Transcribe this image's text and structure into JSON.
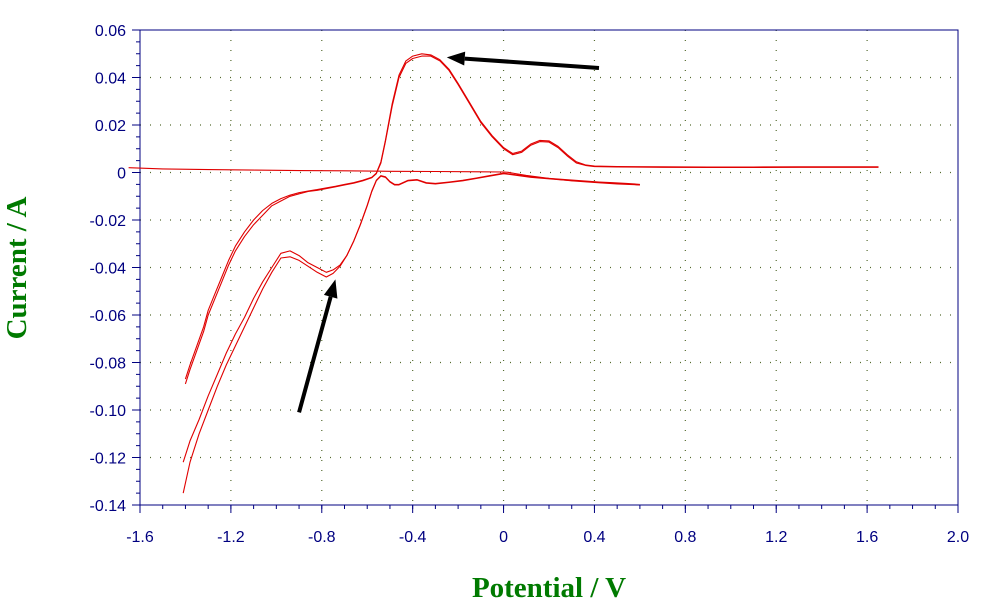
{
  "chart_data": {
    "type": "line",
    "xlabel": "Potential / V",
    "ylabel": "Current / A",
    "xlim": [
      -1.6,
      2.0
    ],
    "ylim": [
      -0.14,
      0.06
    ],
    "xticks": [
      "-1.6",
      "-1.2",
      "-0.8",
      "-0.4",
      "0",
      "0.4",
      "0.8",
      "1.2",
      "1.6",
      "2.0"
    ],
    "yticks": [
      "0.06",
      "0.04",
      "0.02",
      "0",
      "-0.02",
      "-0.04",
      "-0.06",
      "-0.08",
      "-0.10",
      "-0.12",
      "-0.14"
    ],
    "grid": true,
    "colors": {
      "axis": "#000080",
      "curve": "#e00000",
      "grid": "#556b2f",
      "arrow": "#000000",
      "title": "#007a00"
    },
    "series": [
      {
        "x": [
          -1.4,
          -1.38,
          -1.35,
          -1.32,
          -1.3,
          -1.27,
          -1.24,
          -1.21,
          -1.18,
          -1.14,
          -1.1,
          -1.06,
          -1.02,
          -0.98,
          -0.94,
          -0.9,
          -0.86,
          -0.82,
          -0.78,
          -0.74,
          -0.7,
          -0.66,
          -0.62,
          -0.58,
          -0.56,
          -0.54,
          -0.52,
          -0.49,
          -0.46,
          -0.43,
          -0.4,
          -0.36,
          -0.32,
          -0.28,
          -0.24,
          -0.2,
          -0.15,
          -0.1,
          -0.05,
          0.0,
          0.04,
          0.08,
          0.12,
          0.16,
          0.2,
          0.24,
          0.28,
          0.32,
          0.36,
          0.4,
          0.5,
          0.7,
          0.9,
          1.1,
          1.3,
          1.5,
          1.65
        ],
        "y": [
          -0.089,
          -0.083,
          -0.075,
          -0.067,
          -0.06,
          -0.053,
          -0.046,
          -0.039,
          -0.033,
          -0.027,
          -0.022,
          -0.018,
          -0.014,
          -0.012,
          -0.01,
          -0.009,
          -0.008,
          -0.0075,
          -0.0068,
          -0.006,
          -0.0052,
          -0.0045,
          -0.0035,
          -0.0022,
          -0.0005,
          0.004,
          0.013,
          0.028,
          0.04,
          0.046,
          0.048,
          0.049,
          0.049,
          0.047,
          0.043,
          0.037,
          0.029,
          0.021,
          0.015,
          0.01,
          0.0075,
          0.0085,
          0.0115,
          0.013,
          0.0128,
          0.0105,
          0.007,
          0.004,
          0.003,
          0.0025,
          0.0023,
          0.0022,
          0.0021,
          0.0021,
          0.0022,
          0.0022,
          0.0022
        ]
      },
      {
        "x": [
          -1.65,
          -1.5,
          -1.3,
          -1.1,
          -0.9,
          -0.7,
          -0.5,
          -0.3,
          -0.1,
          0.0,
          0.02,
          0.05,
          0.1,
          0.2,
          0.3,
          0.4,
          0.5,
          0.6
        ],
        "y": [
          0.002,
          0.0015,
          0.0012,
          0.001,
          0.0008,
          0.0007,
          0.0005,
          0.0004,
          0.0003,
          0.0002,
          0.0001,
          -0.0004,
          -0.0012,
          -0.0025,
          -0.0035,
          -0.0042,
          -0.0048,
          -0.0052
        ]
      },
      {
        "x": [
          0.6,
          0.54,
          0.48,
          0.42,
          0.36,
          0.3,
          0.24,
          0.18,
          0.12,
          0.06,
          0.0,
          -0.06,
          -0.12,
          -0.18,
          -0.24,
          -0.3,
          -0.34,
          -0.38,
          -0.42,
          -0.46,
          -0.48,
          -0.5,
          -0.52,
          -0.54,
          -0.56,
          -0.58,
          -0.6,
          -0.63,
          -0.66,
          -0.69,
          -0.72,
          -0.75,
          -0.78,
          -0.82,
          -0.86,
          -0.9,
          -0.94,
          -0.98,
          -1.02,
          -1.06,
          -1.1,
          -1.14,
          -1.18,
          -1.22,
          -1.26,
          -1.3,
          -1.34,
          -1.38,
          -1.41
        ],
        "y": [
          -0.0052,
          -0.0048,
          -0.0045,
          -0.0042,
          -0.0038,
          -0.0034,
          -0.003,
          -0.0025,
          -0.002,
          -0.0012,
          -0.0005,
          -0.0015,
          -0.0025,
          -0.0035,
          -0.0042,
          -0.0048,
          -0.0045,
          -0.0032,
          -0.0035,
          -0.0052,
          -0.0052,
          -0.004,
          -0.002,
          -0.0015,
          -0.0035,
          -0.008,
          -0.014,
          -0.022,
          -0.029,
          -0.035,
          -0.039,
          -0.041,
          -0.042,
          -0.04,
          -0.038,
          -0.035,
          -0.033,
          -0.034,
          -0.04,
          -0.046,
          -0.053,
          -0.061,
          -0.068,
          -0.076,
          -0.085,
          -0.094,
          -0.104,
          -0.113,
          -0.122
        ]
      },
      {
        "x": [
          0.6,
          0.54,
          0.48,
          0.42,
          0.36,
          0.3,
          0.24,
          0.18,
          0.12,
          0.06,
          0.0,
          -0.06,
          -0.12,
          -0.18,
          -0.24,
          -0.3,
          -0.34,
          -0.38,
          -0.42,
          -0.46,
          -0.48,
          -0.5,
          -0.52,
          -0.54,
          -0.56,
          -0.58,
          -0.6,
          -0.63,
          -0.66,
          -0.69,
          -0.72,
          -0.75,
          -0.78,
          -0.82,
          -0.86,
          -0.9,
          -0.94,
          -0.98,
          -1.02,
          -1.06,
          -1.1,
          -1.14,
          -1.18,
          -1.22,
          -1.26,
          -1.3,
          -1.34,
          -1.38,
          -1.41
        ],
        "y": [
          -0.005,
          -0.0046,
          -0.0043,
          -0.004,
          -0.0036,
          -0.0032,
          -0.0028,
          -0.0023,
          -0.0018,
          -0.001,
          -0.0003,
          -0.0013,
          -0.0023,
          -0.0033,
          -0.004,
          -0.0046,
          -0.0043,
          -0.003,
          -0.0033,
          -0.005,
          -0.005,
          -0.0038,
          -0.0018,
          -0.0013,
          -0.0033,
          -0.0078,
          -0.0138,
          -0.0218,
          -0.029,
          -0.035,
          -0.0395,
          -0.0425,
          -0.044,
          -0.042,
          -0.0395,
          -0.037,
          -0.0355,
          -0.036,
          -0.042,
          -0.049,
          -0.057,
          -0.065,
          -0.073,
          -0.081,
          -0.09,
          -0.1,
          -0.11,
          -0.122,
          -0.135
        ]
      },
      {
        "x": [
          -1.4,
          -1.38,
          -1.35,
          -1.32,
          -1.3,
          -1.27,
          -1.24,
          -1.21,
          -1.18,
          -1.14,
          -1.1,
          -1.06,
          -1.02,
          -0.98,
          -0.94,
          -0.9,
          -0.86,
          -0.82,
          -0.78,
          -0.74,
          -0.7,
          -0.66,
          -0.62,
          -0.58,
          -0.56,
          -0.54,
          -0.52,
          -0.49,
          -0.46,
          -0.43,
          -0.4,
          -0.36,
          -0.32,
          -0.28,
          -0.24,
          -0.2,
          -0.15,
          -0.1,
          -0.05,
          0.0,
          0.04,
          0.08,
          0.12,
          0.16,
          0.2,
          0.24,
          0.28,
          0.32,
          0.36,
          0.4,
          0.5,
          0.7,
          0.9,
          1.1,
          1.3,
          1.5,
          1.65
        ],
        "y": [
          -0.087,
          -0.081,
          -0.073,
          -0.065,
          -0.058,
          -0.051,
          -0.044,
          -0.037,
          -0.031,
          -0.025,
          -0.02,
          -0.016,
          -0.013,
          -0.011,
          -0.0095,
          -0.0085,
          -0.0078,
          -0.0072,
          -0.0065,
          -0.0058,
          -0.005,
          -0.0043,
          -0.0033,
          -0.002,
          -0.0003,
          0.0045,
          0.0135,
          0.029,
          0.041,
          0.047,
          0.049,
          0.05,
          0.0495,
          0.0475,
          0.0435,
          0.0375,
          0.0295,
          0.0215,
          0.0155,
          0.0105,
          0.008,
          0.009,
          0.012,
          0.0135,
          0.0133,
          0.011,
          0.0075,
          0.0045,
          0.0032,
          0.0027,
          0.0025,
          0.0024,
          0.0023,
          0.0023,
          0.0024,
          0.0024,
          0.0024
        ]
      }
    ],
    "annotations": [
      {
        "type": "arrow",
        "from": [
          0.42,
          0.044
        ],
        "to": [
          -0.25,
          0.0485
        ]
      },
      {
        "type": "arrow",
        "from": [
          -0.9,
          -0.101
        ],
        "to": [
          -0.74,
          -0.045
        ]
      }
    ]
  }
}
